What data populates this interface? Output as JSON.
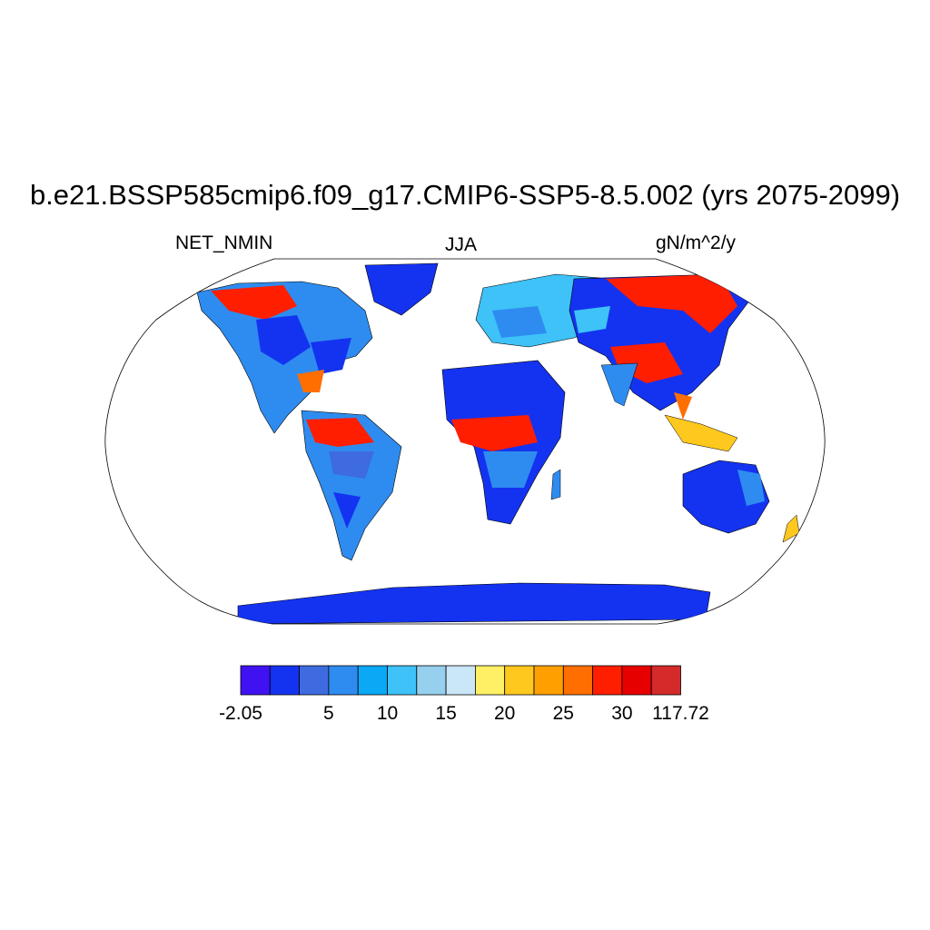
{
  "header": {
    "title": "b.e21.BSSP585cmip6.f09_g17.CMIP6-SSP5-8.5.002 (yrs 2075-2099)",
    "left_string": "NET_NMIN",
    "center_string": "JJA",
    "right_string": "gN/m^2/y"
  },
  "map": {
    "projection": "Robinson",
    "variable": "NET_NMIN",
    "season": "JJA",
    "units": "gN/m^2/y"
  },
  "colorbar": {
    "colors": [
      "#4012f2",
      "#1433f0",
      "#3e6be0",
      "#2e8cf0",
      "#0aa8f5",
      "#3ec2f8",
      "#96d0ee",
      "#cae7f7",
      "#fff066",
      "#ffc81e",
      "#ffa000",
      "#ff6e00",
      "#ff1e00",
      "#e60000",
      "#d42a2a"
    ],
    "labels": [
      {
        "text": "-2.05",
        "boundary": 0
      },
      {
        "text": "5",
        "boundary": 1.5
      },
      {
        "text": "10",
        "boundary": 2.5
      },
      {
        "text": "15",
        "boundary": 3.5
      },
      {
        "text": "20",
        "boundary": 4.5
      },
      {
        "text": "25",
        "boundary": 5.5
      },
      {
        "text": "30",
        "boundary": 6.5
      },
      {
        "text": "117.72",
        "boundary": 7.5
      }
    ]
  }
}
